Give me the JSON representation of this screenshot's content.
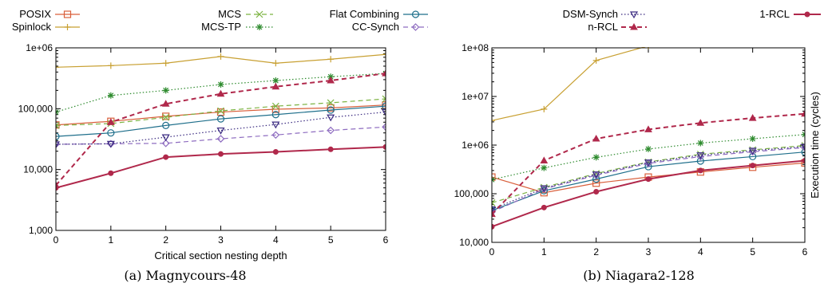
{
  "legend": [
    {
      "label": "POSIX",
      "series": "posix"
    },
    {
      "label": "Spinlock",
      "series": "spinlock"
    },
    {
      "label": "MCS",
      "series": "mcs"
    },
    {
      "label": "MCS-TP",
      "series": "mcstp"
    },
    {
      "label": "Flat Combining",
      "series": "fc"
    },
    {
      "label": "CC-Synch",
      "series": "ccsynch"
    },
    {
      "label": "DSM-Synch",
      "series": "dsmsynch"
    },
    {
      "label": "n-RCL",
      "series": "nrcl"
    },
    {
      "label": "1-RCL",
      "series": "rcl1"
    }
  ],
  "series_styles": {
    "posix": {
      "color": "#d95f3b",
      "marker": "square",
      "dash": "solid",
      "width": 1.2
    },
    "spinlock": {
      "color": "#c8a032",
      "marker": "plus",
      "dash": "solid",
      "width": 1.2
    },
    "mcs": {
      "color": "#7cb342",
      "marker": "x",
      "dash": "dashed",
      "width": 1.2
    },
    "mcstp": {
      "color": "#2e8b2e",
      "marker": "star",
      "dash": "dotted",
      "width": 1.2
    },
    "fc": {
      "color": "#1f6f8b",
      "marker": "circle",
      "dash": "solid",
      "width": 1.2
    },
    "ccsynch": {
      "color": "#8e6cc0",
      "marker": "diamond",
      "dash": "dashed",
      "width": 1.2
    },
    "dsmsynch": {
      "color": "#3a2a80",
      "marker": "triangle-down",
      "dash": "dotted",
      "width": 1.2
    },
    "nrcl": {
      "color": "#b0284b",
      "marker": "triangle-up",
      "dash": "dashed",
      "width": 2
    },
    "rcl1": {
      "color": "#b0284b",
      "marker": "dot",
      "dash": "solid",
      "width": 2
    }
  },
  "chart_data": [
    {
      "type": "line",
      "caption": "(a) Magnycours-48",
      "xlabel": "Critical section nesting depth",
      "ylabel": "",
      "x": [
        0,
        1,
        2,
        3,
        4,
        5,
        6
      ],
      "xlim": [
        0,
        6
      ],
      "ylim": [
        1000,
        1000000
      ],
      "yscale": "log",
      "yticks": [
        "1,000",
        "10,000",
        "100,000",
        "1e+06"
      ],
      "xticks": [
        "0",
        "1",
        "2",
        "3",
        "4",
        "5",
        "6"
      ],
      "series": [
        {
          "name": "POSIX",
          "values": [
            54000,
            62000,
            75000,
            88000,
            98000,
            103000,
            115000
          ]
        },
        {
          "name": "Spinlock",
          "values": [
            480000,
            510000,
            560000,
            720000,
            560000,
            650000,
            780000
          ]
        },
        {
          "name": "MCS",
          "values": [
            53000,
            57000,
            72000,
            92000,
            110000,
            125000,
            145000
          ]
        },
        {
          "name": "MCS-TP",
          "values": [
            88000,
            165000,
            200000,
            250000,
            290000,
            335000,
            380000
          ]
        },
        {
          "name": "Flat Combining",
          "values": [
            35000,
            40000,
            53000,
            68000,
            80000,
            95000,
            110000
          ]
        },
        {
          "name": "CC-Synch",
          "values": [
            26000,
            26500,
            27000,
            32000,
            37000,
            44000,
            50000
          ]
        },
        {
          "name": "DSM-Synch",
          "values": [
            26000,
            26500,
            34000,
            44000,
            55000,
            72000,
            88000
          ]
        },
        {
          "name": "n-RCL",
          "values": [
            5500,
            60000,
            120000,
            175000,
            230000,
            290000,
            380000
          ]
        },
        {
          "name": "1-RCL",
          "values": [
            5000,
            8700,
            16000,
            18000,
            19500,
            21500,
            23500
          ]
        }
      ]
    },
    {
      "type": "line",
      "caption": "(b) Niagara2-128",
      "xlabel": "",
      "ylabel": "Execution time (cycles)",
      "x": [
        0,
        1,
        2,
        3,
        4,
        5,
        6
      ],
      "xlim": [
        0,
        6
      ],
      "ylim": [
        10000,
        100000000
      ],
      "yscale": "log",
      "yticks": [
        "10,000",
        "100,000",
        "1e+06",
        "1e+07",
        "1e+08"
      ],
      "xticks": [
        "0",
        "1",
        "2",
        "3",
        "4",
        "5",
        "6"
      ],
      "series": [
        {
          "name": "POSIX",
          "values": [
            220000,
            105000,
            165000,
            220000,
            280000,
            350000,
            430000
          ]
        },
        {
          "name": "Spinlock",
          "values": [
            3200000,
            5500000,
            55000000,
            110000000,
            null,
            null,
            null
          ]
        },
        {
          "name": "MCS",
          "values": [
            65000,
            135000,
            260000,
            450000,
            650000,
            800000,
            980000
          ]
        },
        {
          "name": "MCS-TP",
          "values": [
            195000,
            340000,
            560000,
            830000,
            1100000,
            1350000,
            1650000
          ]
        },
        {
          "name": "Flat Combining",
          "values": [
            45000,
            115000,
            200000,
            360000,
            470000,
            580000,
            720000
          ]
        },
        {
          "name": "CC-Synch",
          "values": [
            42000,
            125000,
            240000,
            420000,
            580000,
            730000,
            890000
          ]
        },
        {
          "name": "DSM-Synch",
          "values": [
            48000,
            130000,
            250000,
            440000,
            620000,
            770000,
            930000
          ]
        },
        {
          "name": "n-RCL",
          "values": [
            38000,
            480000,
            1350000,
            2100000,
            2850000,
            3600000,
            4400000
          ]
        },
        {
          "name": "1-RCL",
          "values": [
            21000,
            52000,
            110000,
            200000,
            300000,
            380000,
            480000
          ]
        }
      ]
    }
  ]
}
